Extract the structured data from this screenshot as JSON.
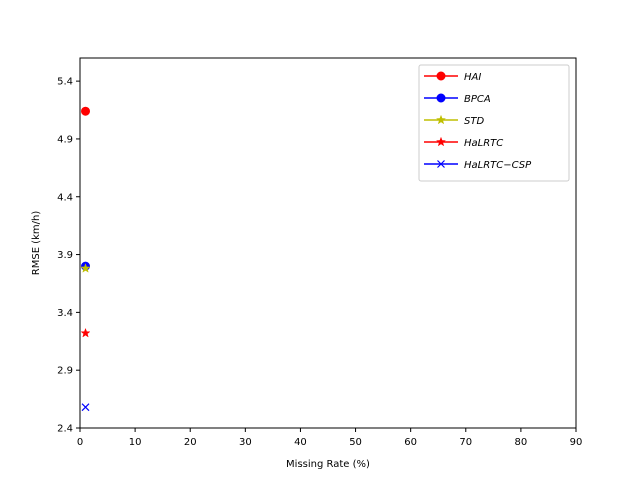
{
  "chart_data": {
    "type": "line",
    "xlabel": "Missing Rate (%)",
    "ylabel": "RMSE (km/h)",
    "xlim": [
      0,
      90
    ],
    "ylim": [
      2.4,
      5.6
    ],
    "xticks": [
      0,
      10,
      20,
      30,
      40,
      50,
      60,
      70,
      80,
      90
    ],
    "yticks": [
      2.4,
      2.9,
      3.4,
      3.9,
      4.4,
      4.9,
      5.4
    ],
    "ytick_labels": [
      "2.4",
      "2.9",
      "3.4",
      "3.9",
      "4.4",
      "4.9",
      "5.4"
    ],
    "grid": false,
    "legend_position": "top-right",
    "series": [
      {
        "name": "HAI",
        "color": "#ff0000",
        "marker": "circle",
        "x": [
          1
        ],
        "y": [
          5.14
        ]
      },
      {
        "name": "BPCA",
        "color": "#0000ff",
        "marker": "circle",
        "x": [
          1
        ],
        "y": [
          3.8
        ]
      },
      {
        "name": "STD",
        "color": "#bfbf00",
        "marker": "star",
        "x": [
          1
        ],
        "y": [
          3.78
        ]
      },
      {
        "name": "HaLRTC",
        "color": "#ff0000",
        "marker": "star",
        "x": [
          1
        ],
        "y": [
          3.22
        ]
      },
      {
        "name": "HaLRTC−CSP",
        "color": "#0000ff",
        "marker": "x",
        "x": [
          1
        ],
        "y": [
          2.58
        ]
      }
    ]
  }
}
